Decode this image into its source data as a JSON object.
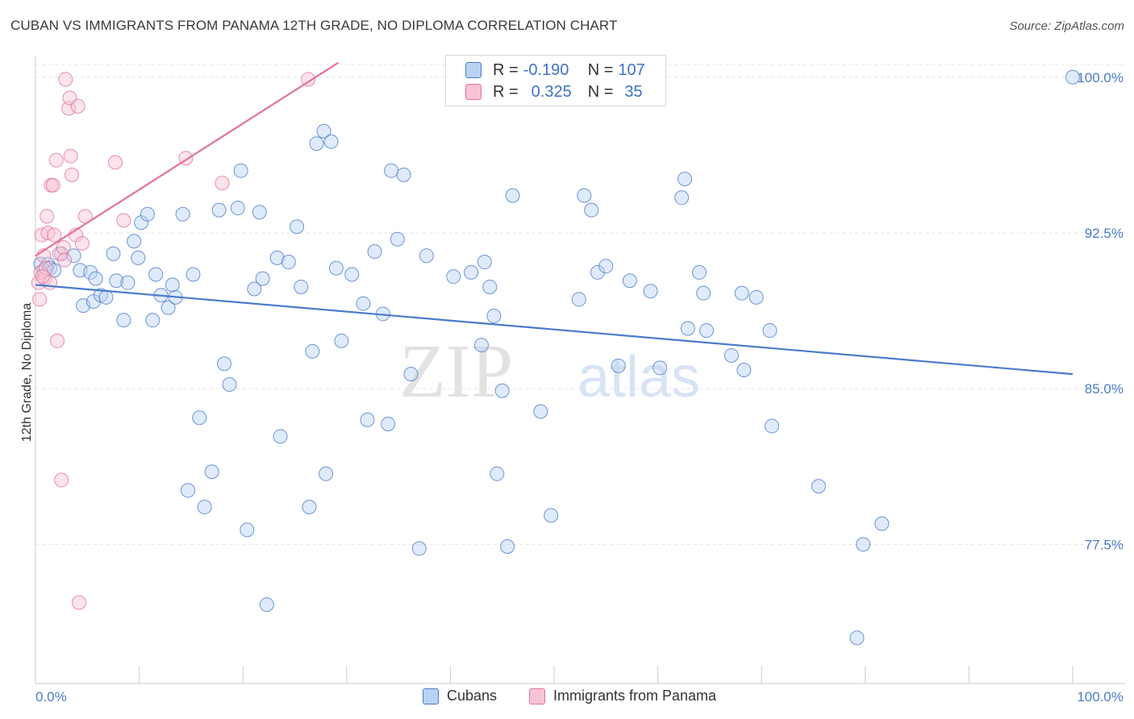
{
  "chart_data": {
    "type": "scatter",
    "title": "CUBAN VS IMMIGRANTS FROM PANAMA 12TH GRADE, NO DIPLOMA CORRELATION CHART",
    "source": "Source: ZipAtlas.com",
    "xlabel": "",
    "ylabel": "12th Grade, No Diploma",
    "xlim": [
      0,
      100
    ],
    "ylim": [
      70.8,
      101.0
    ],
    "x_tick_labels": [
      "0.0%",
      "100.0%"
    ],
    "y_ticks": [
      77.5,
      85.0,
      92.5,
      100.0
    ],
    "y_tick_labels": [
      "77.5%",
      "85.0%",
      "92.5%",
      "100.0%"
    ],
    "grid": true,
    "watermark": {
      "part1": "ZIP",
      "part2": "atlas"
    },
    "series": [
      {
        "name": "Cubans",
        "color": "#4a7ccc",
        "fill": "#b9d2f4",
        "R": "-0.190",
        "N": "107",
        "trend": {
          "x": [
            0,
            100
          ],
          "y": [
            90.0,
            85.7
          ]
        },
        "points": [
          [
            0.5,
            91.0
          ],
          [
            0.8,
            90.7
          ],
          [
            1.2,
            91.0
          ],
          [
            1.4,
            90.8
          ],
          [
            1.8,
            90.7
          ],
          [
            2.5,
            91.5
          ],
          [
            3.7,
            91.4
          ],
          [
            4.3,
            90.7
          ],
          [
            4.6,
            89.0
          ],
          [
            5.3,
            90.6
          ],
          [
            5.6,
            89.2
          ],
          [
            5.8,
            90.3
          ],
          [
            6.3,
            89.5
          ],
          [
            6.8,
            89.4
          ],
          [
            7.5,
            91.5
          ],
          [
            7.8,
            90.2
          ],
          [
            8.5,
            88.3
          ],
          [
            8.9,
            90.1
          ],
          [
            9.5,
            92.1
          ],
          [
            9.9,
            91.3
          ],
          [
            10.2,
            93.0
          ],
          [
            10.8,
            93.4
          ],
          [
            11.3,
            88.3
          ],
          [
            11.6,
            90.5
          ],
          [
            12.1,
            89.5
          ],
          [
            12.8,
            88.9
          ],
          [
            13.2,
            90.0
          ],
          [
            13.5,
            89.4
          ],
          [
            14.2,
            93.4
          ],
          [
            14.7,
            80.1
          ],
          [
            15.2,
            90.5
          ],
          [
            15.8,
            83.6
          ],
          [
            16.3,
            79.3
          ],
          [
            17.0,
            81.0
          ],
          [
            17.7,
            93.6
          ],
          [
            18.2,
            86.2
          ],
          [
            18.7,
            85.2
          ],
          [
            19.5,
            93.7
          ],
          [
            19.8,
            95.5
          ],
          [
            20.4,
            78.2
          ],
          [
            21.1,
            89.8
          ],
          [
            21.6,
            93.5
          ],
          [
            21.9,
            90.3
          ],
          [
            22.3,
            74.6
          ],
          [
            23.3,
            91.3
          ],
          [
            23.6,
            82.7
          ],
          [
            24.4,
            91.1
          ],
          [
            25.2,
            92.8
          ],
          [
            25.6,
            89.9
          ],
          [
            26.4,
            79.3
          ],
          [
            26.7,
            86.8
          ],
          [
            27.1,
            96.8
          ],
          [
            27.8,
            97.4
          ],
          [
            28.0,
            80.9
          ],
          [
            28.5,
            96.9
          ],
          [
            29.0,
            90.8
          ],
          [
            29.5,
            87.3
          ],
          [
            30.5,
            90.5
          ],
          [
            31.6,
            89.1
          ],
          [
            32.0,
            83.5
          ],
          [
            32.7,
            91.6
          ],
          [
            33.5,
            88.6
          ],
          [
            34.0,
            83.3
          ],
          [
            34.3,
            95.5
          ],
          [
            34.9,
            92.2
          ],
          [
            35.5,
            95.3
          ],
          [
            36.2,
            85.7
          ],
          [
            37.0,
            77.3
          ],
          [
            37.7,
            91.4
          ],
          [
            40.3,
            90.4
          ],
          [
            42.0,
            90.6
          ],
          [
            43.0,
            87.1
          ],
          [
            43.3,
            91.1
          ],
          [
            43.8,
            89.9
          ],
          [
            44.2,
            88.5
          ],
          [
            44.5,
            80.9
          ],
          [
            45.0,
            84.9
          ],
          [
            45.5,
            77.4
          ],
          [
            46.0,
            94.3
          ],
          [
            48.7,
            83.9
          ],
          [
            49.7,
            78.9
          ],
          [
            52.4,
            89.3
          ],
          [
            52.9,
            94.3
          ],
          [
            53.6,
            93.6
          ],
          [
            54.2,
            90.6
          ],
          [
            55.0,
            90.9
          ],
          [
            56.2,
            86.1
          ],
          [
            57.3,
            90.2
          ],
          [
            59.3,
            89.7
          ],
          [
            60.2,
            86.0
          ],
          [
            62.3,
            94.2
          ],
          [
            62.6,
            95.1
          ],
          [
            62.9,
            87.9
          ],
          [
            64.0,
            90.6
          ],
          [
            64.4,
            89.6
          ],
          [
            64.7,
            87.8
          ],
          [
            67.1,
            86.6
          ],
          [
            68.1,
            89.6
          ],
          [
            68.3,
            85.9
          ],
          [
            69.5,
            89.4
          ],
          [
            70.8,
            87.8
          ],
          [
            71.0,
            83.2
          ],
          [
            75.5,
            80.3
          ],
          [
            79.2,
            73.0
          ],
          [
            79.8,
            77.5
          ],
          [
            81.6,
            78.5
          ],
          [
            100.0,
            100.0
          ]
        ]
      },
      {
        "name": "Immigrants from Panama",
        "color": "#e27398",
        "fill": "#f8c4d4",
        "R": "0.325",
        "N": "35",
        "trend": {
          "x": [
            0,
            29.2
          ],
          "y": [
            91.4,
            100.7
          ]
        },
        "points": [
          [
            0.3,
            90.1
          ],
          [
            0.4,
            89.3
          ],
          [
            0.5,
            90.6
          ],
          [
            0.6,
            92.4
          ],
          [
            0.8,
            91.4
          ],
          [
            0.9,
            90.3
          ],
          [
            1.0,
            90.8
          ],
          [
            1.1,
            93.3
          ],
          [
            1.2,
            92.5
          ],
          [
            1.4,
            90.1
          ],
          [
            1.5,
            94.8
          ],
          [
            1.7,
            94.8
          ],
          [
            1.8,
            92.4
          ],
          [
            2.0,
            96.0
          ],
          [
            2.1,
            87.3
          ],
          [
            2.3,
            91.5
          ],
          [
            2.5,
            80.6
          ],
          [
            2.7,
            91.8
          ],
          [
            2.8,
            91.2
          ],
          [
            2.9,
            99.9
          ],
          [
            3.2,
            98.5
          ],
          [
            3.3,
            99.0
          ],
          [
            3.4,
            96.2
          ],
          [
            3.5,
            95.3
          ],
          [
            3.9,
            92.4
          ],
          [
            4.1,
            98.6
          ],
          [
            4.2,
            74.7
          ],
          [
            4.5,
            92.0
          ],
          [
            4.8,
            93.3
          ],
          [
            7.7,
            95.9
          ],
          [
            8.5,
            93.1
          ],
          [
            14.5,
            96.1
          ],
          [
            18.0,
            94.9
          ],
          [
            26.3,
            99.9
          ],
          [
            0.7,
            90.4
          ]
        ]
      }
    ]
  }
}
